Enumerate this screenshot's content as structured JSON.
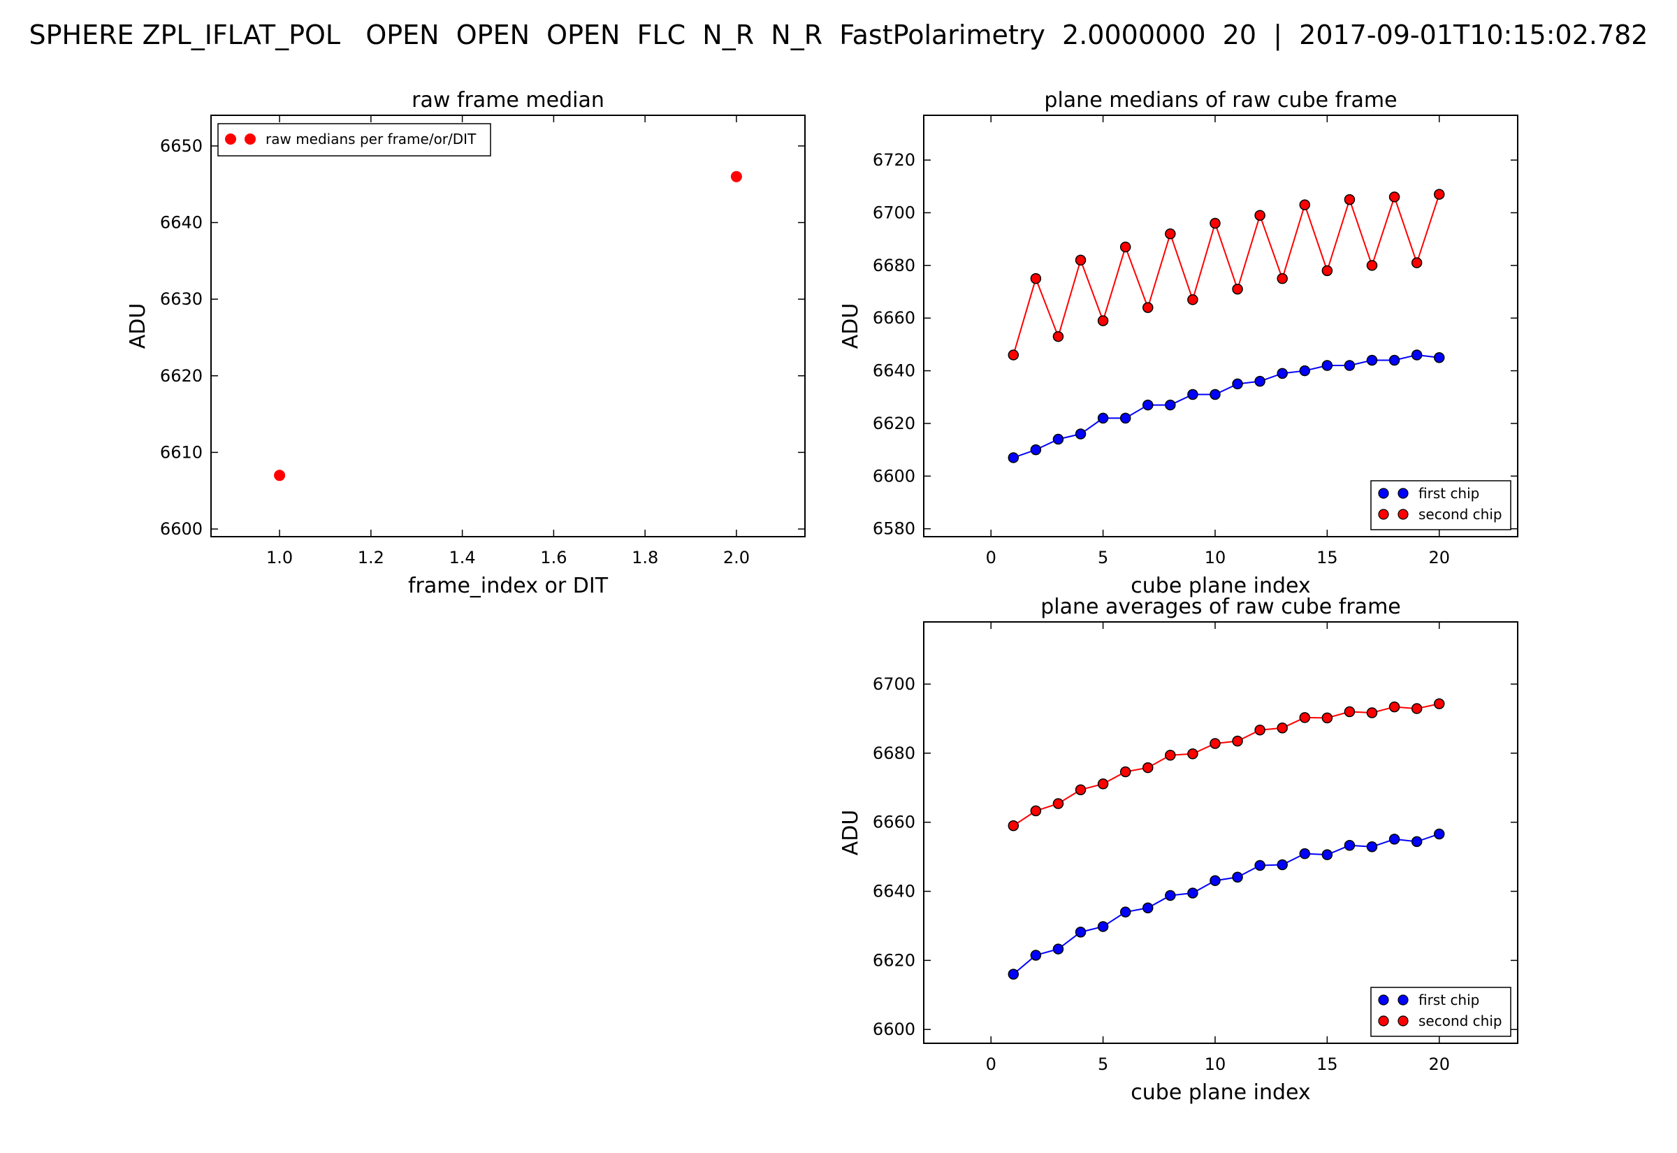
{
  "suptitle": "SPHERE ZPL_IFLAT_POL   OPEN  OPEN  OPEN  FLC  N_R  N_R  FastPolarimetry  2.0000000  20  |  2017-09-01T10:15:02.782",
  "chart_data": [
    {
      "id": "raw-frame-median",
      "type": "scatter",
      "title": "raw frame median",
      "xlabel": "frame_index or DIT",
      "ylabel": "ADU",
      "xlim": [
        0.85,
        2.15
      ],
      "ylim": [
        6599,
        6654
      ],
      "xticks": [
        1.0,
        1.2,
        1.4,
        1.6,
        1.8,
        2.0
      ],
      "xtick_labels": [
        "1.0",
        "1.2",
        "1.4",
        "1.6",
        "1.8",
        "2.0"
      ],
      "yticks": [
        6600,
        6610,
        6620,
        6630,
        6640,
        6650
      ],
      "legend": "upper-left",
      "series": [
        {
          "name": "raw medians per frame/or/DIT",
          "color": "#ff0000",
          "marker": "circle-no-edge",
          "line": false,
          "x": [
            1.0,
            2.0
          ],
          "y": [
            6607,
            6646
          ]
        }
      ]
    },
    {
      "id": "plane-medians",
      "type": "line",
      "title": "plane medians of raw cube frame",
      "xlabel": "cube plane index",
      "ylabel": "ADU",
      "xlim": [
        -3,
        23.5
      ],
      "ylim": [
        6577,
        6737
      ],
      "xticks": [
        0,
        5,
        10,
        15,
        20
      ],
      "yticks": [
        6580,
        6600,
        6620,
        6640,
        6660,
        6680,
        6700,
        6720
      ],
      "legend": "lower-right",
      "series": [
        {
          "name": "first  chip",
          "color": "#0000ff",
          "marker": "circle",
          "line": true,
          "x": [
            1,
            2,
            3,
            4,
            5,
            6,
            7,
            8,
            9,
            10,
            11,
            12,
            13,
            14,
            15,
            16,
            17,
            18,
            19,
            20
          ],
          "y": [
            6607,
            6610,
            6614,
            6616,
            6622,
            6622,
            6627,
            6627,
            6631,
            6631,
            6635,
            6636,
            6639,
            6640,
            6642,
            6642,
            6644,
            6644,
            6646,
            6645
          ]
        },
        {
          "name": "second chip",
          "color": "#ff0000",
          "marker": "circle",
          "line": true,
          "x": [
            1,
            2,
            3,
            4,
            5,
            6,
            7,
            8,
            9,
            10,
            11,
            12,
            13,
            14,
            15,
            16,
            17,
            18,
            19,
            20
          ],
          "y": [
            6646,
            6675,
            6653,
            6682,
            6659,
            6687,
            6664,
            6692,
            6667,
            6696,
            6671,
            6699,
            6675,
            6703,
            6678,
            6705,
            6680,
            6706,
            6681,
            6707
          ]
        }
      ]
    },
    {
      "id": "plane-averages",
      "type": "line",
      "title": "plane averages of raw cube frame",
      "xlabel": "cube plane index",
      "ylabel": "ADU",
      "xlim": [
        -3,
        23.5
      ],
      "ylim": [
        6596,
        6718
      ],
      "xticks": [
        0,
        5,
        10,
        15,
        20
      ],
      "yticks": [
        6600,
        6620,
        6640,
        6660,
        6680,
        6700
      ],
      "legend": "lower-right",
      "series": [
        {
          "name": "first  chip",
          "color": "#0000ff",
          "marker": "circle",
          "line": true,
          "x": [
            1,
            2,
            3,
            4,
            5,
            6,
            7,
            8,
            9,
            10,
            11,
            12,
            13,
            14,
            15,
            16,
            17,
            18,
            19,
            20
          ],
          "y": [
            6616.0,
            6621.5,
            6623.3,
            6628.2,
            6629.8,
            6634.0,
            6635.2,
            6638.8,
            6639.5,
            6643.1,
            6644.1,
            6647.5,
            6647.7,
            6650.9,
            6650.6,
            6653.3,
            6652.9,
            6655.1,
            6654.4,
            6656.6
          ]
        },
        {
          "name": "second chip",
          "color": "#ff0000",
          "marker": "circle",
          "line": true,
          "x": [
            1,
            2,
            3,
            4,
            5,
            6,
            7,
            8,
            9,
            10,
            11,
            12,
            13,
            14,
            15,
            16,
            17,
            18,
            19,
            20
          ],
          "y": [
            6659.0,
            6663.3,
            6665.4,
            6669.4,
            6671.1,
            6674.6,
            6675.8,
            6679.4,
            6679.8,
            6682.8,
            6683.5,
            6686.7,
            6687.3,
            6690.3,
            6690.2,
            6692.0,
            6691.7,
            6693.4,
            6692.9,
            6694.3
          ]
        }
      ]
    }
  ]
}
